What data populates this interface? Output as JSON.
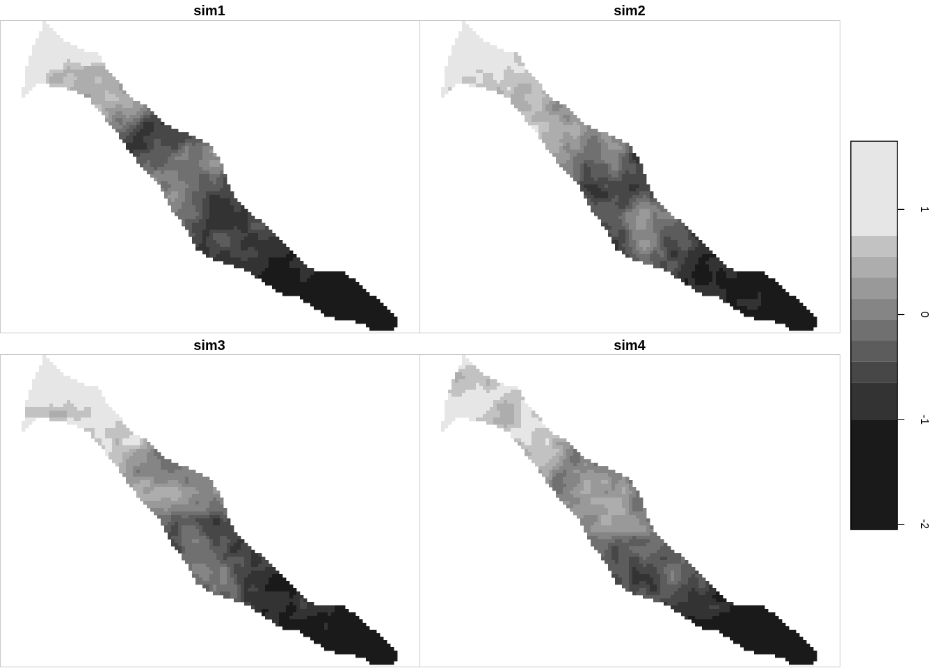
{
  "chart_data": {
    "type": "heatmap",
    "panels": [
      {
        "title": "sim1",
        "profile": [
          1.15,
          0.55,
          -0.65,
          0.25,
          -0.75,
          -1.05,
          -1.85,
          -2.0
        ]
      },
      {
        "title": "sim2",
        "profile": [
          1.05,
          0.75,
          0.2,
          -0.35,
          -0.25,
          -0.95,
          -1.25,
          -2.0
        ]
      },
      {
        "title": "sim3",
        "profile": [
          1.25,
          0.75,
          0.2,
          -0.2,
          -0.35,
          -0.75,
          -1.3,
          -2.0
        ]
      },
      {
        "title": "sim4",
        "profile": [
          0.85,
          0.8,
          -0.15,
          0.2,
          -0.3,
          -0.95,
          -1.3,
          -2.0
        ]
      }
    ],
    "legend": {
      "breaks": [
        -2.05,
        -1.0,
        -0.65,
        -0.45,
        -0.25,
        -0.05,
        0.15,
        0.35,
        0.55,
        0.75,
        1.65
      ],
      "colors": [
        "#1a1a1a",
        "#333333",
        "#474747",
        "#5c5c5c",
        "#707070",
        "#858585",
        "#999999",
        "#adadad",
        "#c2c2c2",
        "#e6e6e6"
      ],
      "ticks": [
        1,
        0,
        -1,
        -2
      ],
      "tick_labels": [
        "1",
        "0",
        "-1",
        "-2"
      ],
      "range": [
        -2.05,
        1.65
      ]
    }
  }
}
